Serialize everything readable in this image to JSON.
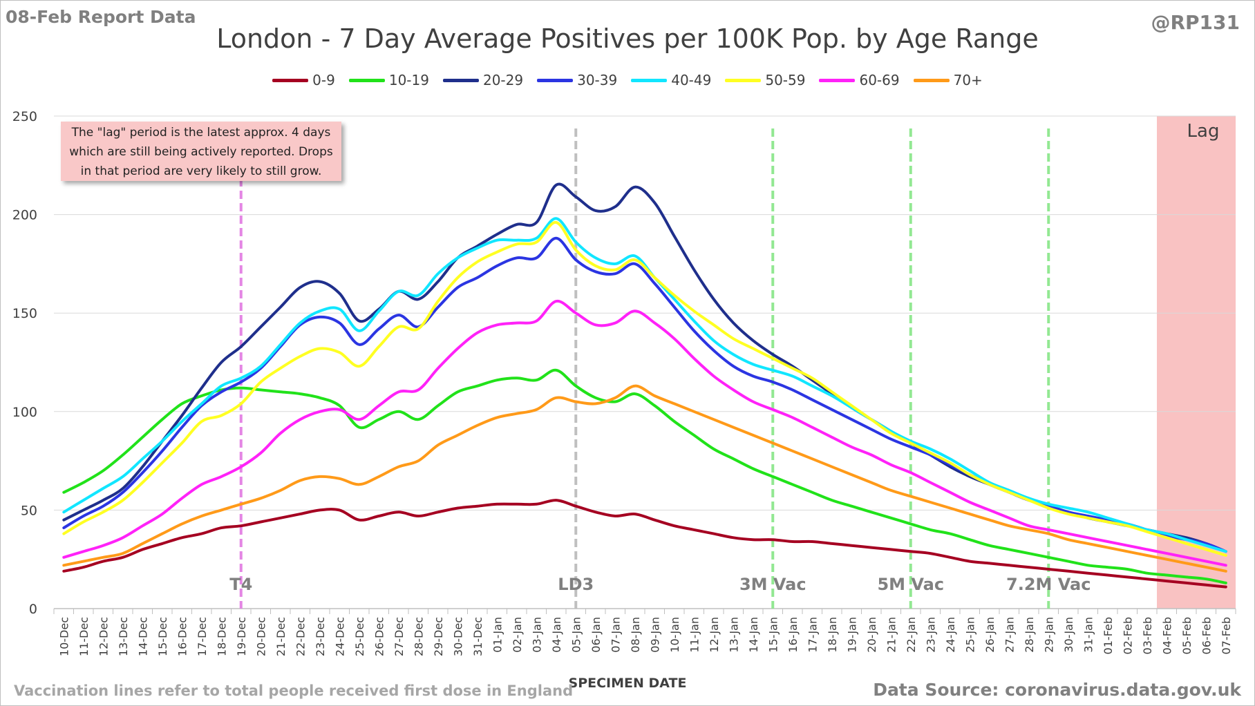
{
  "header": {
    "report_date": "08-Feb Report Data",
    "handle": "@RP131",
    "title": "London - 7 Day Average Positives per 100K Pop. by Age Range"
  },
  "note": {
    "line1": "The \"lag\" period is the latest approx. 4 days",
    "line2": "which are still being actively reported.  Drops",
    "line3": "in that period are very likely to still grow."
  },
  "footer": {
    "x_title": "SPECIMEN DATE",
    "vaccination_note": "Vaccination lines refer to total people received first dose in England",
    "source": "Data Source: coronavirus.data.gov.uk"
  },
  "chart_data": {
    "type": "line",
    "title": "London - 7 Day Average Positives per 100K Pop. by Age Range",
    "xlabel": "SPECIMEN DATE",
    "ylabel": "",
    "ylim": [
      0,
      250
    ],
    "yticks": [
      0,
      50,
      100,
      150,
      200,
      250
    ],
    "grid": true,
    "legend_position": "top",
    "categories": [
      "10-Dec",
      "11-Dec",
      "12-Dec",
      "13-Dec",
      "14-Dec",
      "15-Dec",
      "16-Dec",
      "17-Dec",
      "18-Dec",
      "19-Dec",
      "20-Dec",
      "21-Dec",
      "22-Dec",
      "23-Dec",
      "24-Dec",
      "25-Dec",
      "26-Dec",
      "27-Dec",
      "28-Dec",
      "29-Dec",
      "30-Dec",
      "31-Dec",
      "01-Jan",
      "02-Jan",
      "03-Jan",
      "04-Jan",
      "05-Jan",
      "06-Jan",
      "07-Jan",
      "08-Jan",
      "09-Jan",
      "10-Jan",
      "11-Jan",
      "12-Jan",
      "13-Jan",
      "14-Jan",
      "15-Jan",
      "16-Jan",
      "17-Jan",
      "18-Jan",
      "19-Jan",
      "20-Jan",
      "21-Jan",
      "22-Jan",
      "23-Jan",
      "24-Jan",
      "25-Jan",
      "26-Jan",
      "27-Jan",
      "28-Jan",
      "29-Jan",
      "30-Jan",
      "31-Jan",
      "01-Feb",
      "02-Feb",
      "03-Feb",
      "04-Feb",
      "05-Feb",
      "06-Feb",
      "07-Feb"
    ],
    "series": [
      {
        "name": "0-9",
        "color": "#a50021",
        "values": [
          19,
          21,
          24,
          26,
          30,
          33,
          36,
          38,
          41,
          42,
          44,
          46,
          48,
          50,
          50,
          45,
          47,
          49,
          47,
          49,
          51,
          52,
          53,
          53,
          53,
          55,
          52,
          49,
          47,
          48,
          45,
          42,
          40,
          38,
          36,
          35,
          35,
          34,
          34,
          33,
          32,
          31,
          30,
          29,
          28,
          26,
          24,
          23,
          22,
          21,
          20,
          19,
          18,
          17,
          16,
          15,
          14,
          13,
          12,
          11
        ]
      },
      {
        "name": "10-19",
        "color": "#21e21a",
        "values": [
          59,
          64,
          70,
          78,
          87,
          96,
          104,
          108,
          111,
          112,
          111,
          110,
          109,
          107,
          103,
          92,
          96,
          100,
          96,
          103,
          110,
          113,
          116,
          117,
          116,
          121,
          113,
          107,
          105,
          109,
          103,
          95,
          88,
          81,
          76,
          71,
          67,
          63,
          59,
          55,
          52,
          49,
          46,
          43,
          40,
          38,
          35,
          32,
          30,
          28,
          26,
          24,
          22,
          21,
          20,
          18,
          17,
          16,
          15,
          13
        ]
      },
      {
        "name": "20-29",
        "color": "#1f2f8c",
        "values": [
          45,
          50,
          55,
          61,
          72,
          85,
          98,
          112,
          125,
          133,
          143,
          153,
          163,
          166,
          160,
          146,
          152,
          161,
          157,
          166,
          178,
          184,
          190,
          195,
          196,
          215,
          209,
          202,
          204,
          214,
          206,
          189,
          172,
          157,
          145,
          136,
          129,
          123,
          116,
          109,
          102,
          96,
          90,
          84,
          78,
          72,
          67,
          63,
          59,
          55,
          52,
          49,
          46,
          44,
          42,
          40,
          38,
          36,
          33,
          29
        ]
      },
      {
        "name": "30-39",
        "color": "#2b35e2",
        "values": [
          41,
          47,
          52,
          59,
          69,
          80,
          92,
          103,
          110,
          115,
          122,
          133,
          144,
          148,
          145,
          134,
          142,
          149,
          143,
          153,
          163,
          168,
          174,
          178,
          178,
          188,
          177,
          171,
          170,
          175,
          165,
          153,
          141,
          131,
          123,
          118,
          115,
          111,
          106,
          101,
          96,
          91,
          86,
          82,
          78,
          73,
          68,
          63,
          59,
          55,
          52,
          49,
          47,
          45,
          43,
          40,
          37,
          35,
          33,
          29
        ]
      },
      {
        "name": "40-49",
        "color": "#11e6ff",
        "values": [
          49,
          55,
          61,
          67,
          76,
          85,
          95,
          104,
          113,
          117,
          123,
          134,
          145,
          151,
          152,
          141,
          151,
          161,
          159,
          170,
          178,
          183,
          187,
          187,
          188,
          198,
          186,
          178,
          175,
          179,
          168,
          157,
          146,
          136,
          129,
          124,
          121,
          118,
          113,
          108,
          102,
          96,
          90,
          85,
          81,
          76,
          70,
          64,
          60,
          56,
          53,
          51,
          49,
          46,
          43,
          40,
          38,
          35,
          32,
          29
        ]
      },
      {
        "name": "50-59",
        "color": "#ffff22",
        "values": [
          38,
          44,
          49,
          55,
          64,
          74,
          84,
          95,
          98,
          104,
          115,
          122,
          128,
          132,
          130,
          123,
          133,
          143,
          142,
          156,
          168,
          176,
          181,
          185,
          186,
          196,
          182,
          174,
          172,
          177,
          168,
          159,
          151,
          144,
          137,
          132,
          127,
          122,
          117,
          110,
          103,
          96,
          89,
          84,
          79,
          74,
          68,
          63,
          59,
          55,
          51,
          48,
          46,
          44,
          42,
          39,
          36,
          33,
          30,
          27
        ]
      },
      {
        "name": "60-69",
        "color": "#ff22f8",
        "values": [
          26,
          29,
          32,
          36,
          42,
          48,
          56,
          63,
          67,
          72,
          79,
          89,
          96,
          100,
          101,
          96,
          103,
          110,
          111,
          122,
          132,
          140,
          144,
          145,
          146,
          156,
          150,
          144,
          145,
          151,
          145,
          137,
          127,
          118,
          111,
          105,
          101,
          97,
          92,
          87,
          82,
          78,
          73,
          69,
          64,
          59,
          54,
          50,
          46,
          42,
          40,
          38,
          36,
          34,
          32,
          30,
          28,
          26,
          24,
          22
        ]
      },
      {
        "name": "70+",
        "color": "#ff9a19",
        "values": [
          22,
          24,
          26,
          28,
          33,
          38,
          43,
          47,
          50,
          53,
          56,
          60,
          65,
          67,
          66,
          63,
          67,
          72,
          75,
          83,
          88,
          93,
          97,
          99,
          101,
          107,
          105,
          104,
          107,
          113,
          108,
          104,
          100,
          96,
          92,
          88,
          84,
          80,
          76,
          72,
          68,
          64,
          60,
          57,
          54,
          51,
          48,
          45,
          42,
          40,
          38,
          35,
          33,
          31,
          29,
          27,
          25,
          23,
          21,
          19
        ]
      }
    ],
    "markers": [
      {
        "label": "T4",
        "date": "19-Dec",
        "color": "#e486e4"
      },
      {
        "label": "LD3",
        "date": "05-Jan",
        "color": "#bfbfbf"
      },
      {
        "label": "3M Vac",
        "date": "15-Jan",
        "color": "#92e892"
      },
      {
        "label": "5M Vac",
        "date": "22-Jan",
        "color": "#92e892"
      },
      {
        "label": "7.2M Vac",
        "date": "29-Jan",
        "color": "#92e892"
      }
    ],
    "lag_region": {
      "label": "Lag",
      "from": "04-Feb",
      "to": "07-Feb",
      "color": "#f9c2c2"
    }
  }
}
